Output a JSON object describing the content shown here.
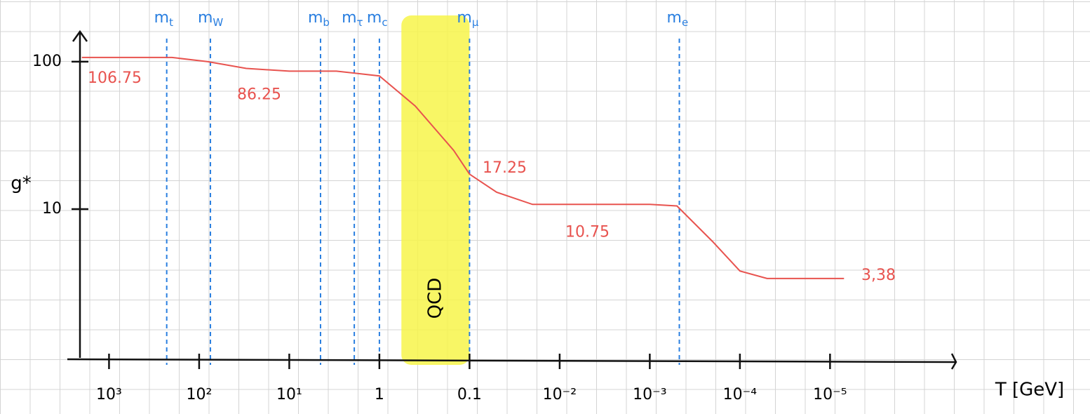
{
  "chart_data": {
    "type": "line",
    "y_label": "g*",
    "x_label": "T [GeV]",
    "xscale": "log",
    "yscale": "log",
    "x_reversed": true,
    "xlim": [
      2700,
      4e-07
    ],
    "ylim": [
      1,
      160
    ],
    "xticks": [
      {
        "value": 1000,
        "label": "10³"
      },
      {
        "value": 100,
        "label": "10²"
      },
      {
        "value": 10,
        "label": "10¹"
      },
      1,
      0.1,
      {
        "value": 0.01,
        "label": "10⁻²"
      },
      {
        "value": 0.001,
        "label": "10⁻³"
      },
      {
        "value": 0.0001,
        "label": "10⁻⁴"
      },
      {
        "value": 1e-05,
        "label": "10⁻⁵"
      }
    ],
    "yticks": [
      100,
      10
    ],
    "series": [
      {
        "name": "g*",
        "color": "#e8534f",
        "x": [
          2000,
          200,
          80,
          30,
          10,
          3,
          1,
          0.4,
          0.15,
          0.1,
          0.05,
          0.02,
          0.001,
          0.0005,
          0.0002,
          0.0001,
          5e-05,
          7e-06
        ],
        "values": [
          106.75,
          106.75,
          100,
          90,
          86.25,
          86.25,
          80,
          50,
          25,
          17.25,
          13,
          10.75,
          10.75,
          10.5,
          6,
          3.8,
          3.38,
          3.38
        ]
      }
    ],
    "annotations": [
      {
        "value": 106.75,
        "label": "106.75"
      },
      {
        "value": 86.25,
        "label": "86.25"
      },
      {
        "value": 17.25,
        "label": "17.25"
      },
      {
        "value": 10.75,
        "label": "10.75"
      },
      {
        "value": 3.38,
        "label": "3,38"
      }
    ],
    "masses": [
      {
        "label": "m",
        "sub": "t",
        "value": 229
      },
      {
        "label": "m",
        "sub": "W",
        "value": 75
      },
      {
        "label": "m",
        "sub": "b",
        "value": 4.5
      },
      {
        "label": "m",
        "sub": "τ",
        "value": 1.9
      },
      {
        "label": "m",
        "sub": "c",
        "value": 1.0
      },
      {
        "label": "m",
        "sub": "μ",
        "value": 0.1
      },
      {
        "label": "m",
        "sub": "e",
        "value": 0.00047
      }
    ],
    "mass_color": "#2a7fe0",
    "band": {
      "label": "QCD",
      "range": [
        0.57,
        0.1
      ],
      "color": "#f7f54a"
    }
  }
}
